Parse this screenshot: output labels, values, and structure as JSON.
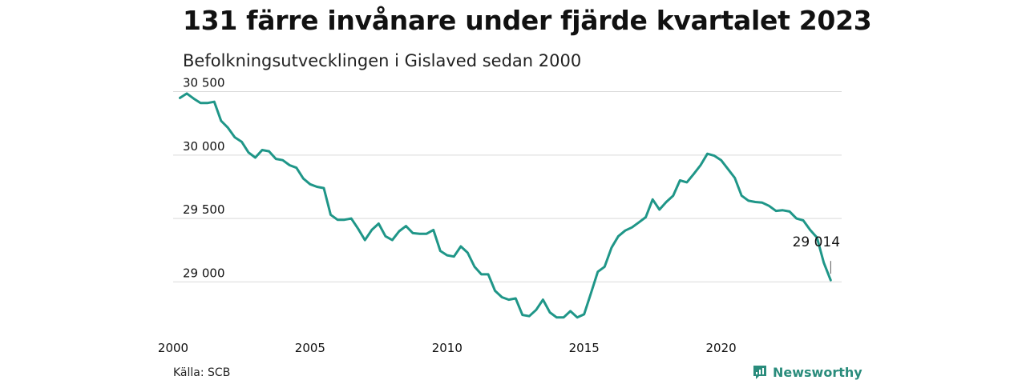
{
  "header": {
    "title": "131 färre invånare under fjärde kvartalet 2023",
    "subtitle": "Befolkningsutvecklingen i Gislaved sedan 2000"
  },
  "footer": {
    "source": "Källa: SCB",
    "brand": "Newsworthy",
    "brand_color": "#2a8c7c"
  },
  "chart_data": {
    "type": "line",
    "title": "131 färre invånare under fjärde kvartalet 2023",
    "subtitle": "Befolkningsutvecklingen i Gislaved sedan 2000",
    "xlabel": "",
    "ylabel": "",
    "line_color": "#1f9688",
    "grid": true,
    "xlim": [
      2000,
      2024.4
    ],
    "ylim": [
      28700,
      30560
    ],
    "x_ticks": [
      2000,
      2005,
      2010,
      2015,
      2020
    ],
    "x_tick_labels": [
      "2000",
      "2005",
      "2010",
      "2015",
      "2020"
    ],
    "y_ticks": [
      29000,
      29500,
      30000,
      30500
    ],
    "y_tick_labels": [
      "29 000",
      "29 500",
      "30 000",
      "30 500"
    ],
    "end_label": "29 014",
    "series": [
      {
        "x": [
          2000.25,
          2000.5,
          2000.75,
          2001.0,
          2001.25,
          2001.5,
          2001.75,
          2002.0,
          2002.25,
          2002.5,
          2002.75,
          2003.0,
          2003.25,
          2003.5,
          2003.75,
          2004.0,
          2004.25,
          2004.5,
          2004.75,
          2005.0,
          2005.25,
          2005.5,
          2005.75,
          2006.0,
          2006.25,
          2006.5,
          2006.75,
          2007.0,
          2007.25,
          2007.5,
          2007.75,
          2008.0,
          2008.25,
          2008.5,
          2008.75,
          2009.0,
          2009.25,
          2009.5,
          2009.75,
          2010.0,
          2010.25,
          2010.5,
          2010.75,
          2011.0,
          2011.25,
          2011.5,
          2011.75,
          2012.0,
          2012.25,
          2012.5,
          2012.75,
          2013.0,
          2013.25,
          2013.5,
          2013.75,
          2014.0,
          2014.25,
          2014.5,
          2014.75,
          2015.0,
          2015.25,
          2015.5,
          2015.75,
          2016.0,
          2016.25,
          2016.5,
          2016.75,
          2017.0,
          2017.25,
          2017.5,
          2017.75,
          2018.0,
          2018.25,
          2018.5,
          2018.75,
          2019.0,
          2019.25,
          2019.5,
          2019.75,
          2020.0,
          2020.25,
          2020.5,
          2020.75,
          2021.0,
          2021.25,
          2021.5,
          2021.75,
          2022.0,
          2022.25,
          2022.5,
          2022.75,
          2023.0,
          2023.25,
          2023.5,
          2023.75,
          2024.0
        ],
        "values": [
          30450,
          30485,
          30445,
          30410,
          30410,
          30420,
          30270,
          30215,
          30140,
          30105,
          30020,
          29980,
          30040,
          30030,
          29970,
          29960,
          29920,
          29900,
          29815,
          29770,
          29750,
          29740,
          29530,
          29490,
          29490,
          29500,
          29420,
          29330,
          29410,
          29460,
          29360,
          29330,
          29400,
          29440,
          29385,
          29380,
          29380,
          29410,
          29245,
          29210,
          29200,
          29280,
          29230,
          29120,
          29060,
          29060,
          28930,
          28880,
          28860,
          28870,
          28740,
          28730,
          28780,
          28860,
          28760,
          28720,
          28720,
          28770,
          28720,
          28745,
          28910,
          29080,
          29120,
          29270,
          29360,
          29405,
          29430,
          29470,
          29510,
          29650,
          29570,
          29630,
          29680,
          29800,
          29785,
          29850,
          29920,
          30010,
          29995,
          29960,
          29890,
          29820,
          29680,
          29640,
          29630,
          29625,
          29600,
          29560,
          29565,
          29555,
          29500,
          29485,
          29410,
          29350,
          29150,
          29014
        ]
      }
    ]
  }
}
